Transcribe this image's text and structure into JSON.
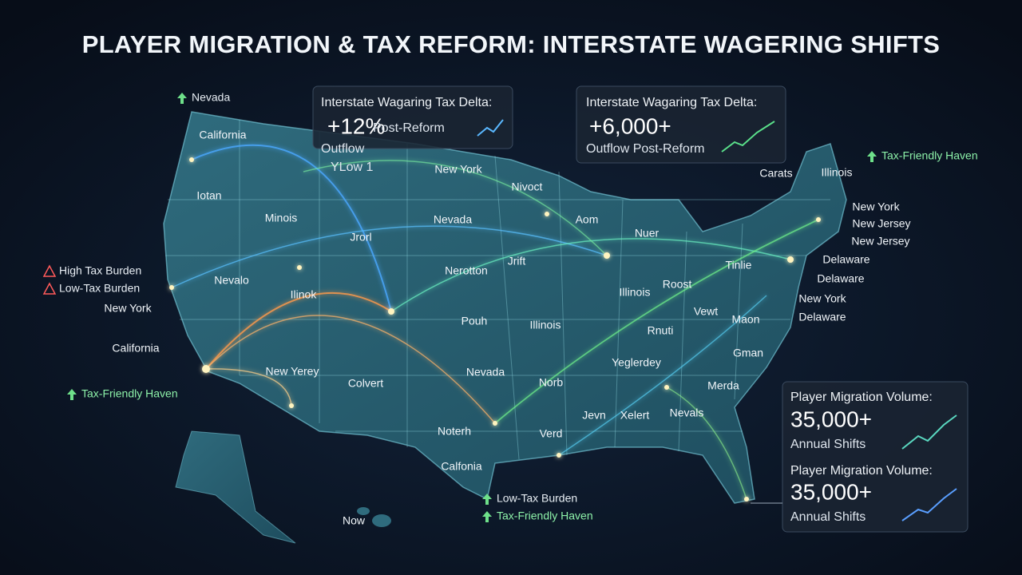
{
  "title": "PLAYER MIGRATION & TAX REFORM: INTERSTATE WAGERING SHIFTS",
  "cards": [
    {
      "heading": "Interstate Wagaring Tax Delta:",
      "value": "+12%",
      "notes": [
        "Post-Reform",
        "Outflow",
        "YLow 1"
      ]
    },
    {
      "heading": "Interstate Wagaring Tax Delta:",
      "value": "+6,000+",
      "notes": [
        "Outflow Post-Reform"
      ]
    },
    {
      "heading": "Player Migration Volume:",
      "value": "35,000+",
      "notes": [
        "Annual Shifts"
      ]
    },
    {
      "heading": "Player Migration Volume:",
      "value": "35,000+",
      "notes": [
        "Annual Shifts"
      ]
    }
  ],
  "annotations": [
    "Nevada",
    "Tax-Friendly Haven",
    "High Tax Burden",
    "Low-Tax Burden",
    "Tax-Friendly Haven",
    "Low-Tax Burden",
    "Tax-Friendly Haven"
  ],
  "map_labels": [
    "California",
    "Iotan",
    "Minois",
    "Jrorl",
    "Nevalo",
    "Ilinok",
    "New York",
    "California",
    "New Yerey",
    "Colvert",
    "New York",
    "Nivoct",
    "Nevada",
    "Aom",
    "Nuer",
    "Jrift",
    "Nerotton",
    "Pouh",
    "Illinois",
    "Illinois",
    "Roost",
    "Tinlie",
    "Vewt",
    "Rnuti",
    "Maon",
    "Yeglerdey",
    "Gman",
    "Nevada",
    "Norb",
    "Merda",
    "Nevals",
    "Xelert",
    "Jevn",
    "Verd",
    "Noterh",
    "Calfonia",
    "Now",
    "Carats",
    "Illinois",
    "New York",
    "New Jersey",
    "New Jersey",
    "Delaware",
    "Delaware",
    "New York",
    "Delaware"
  ]
}
